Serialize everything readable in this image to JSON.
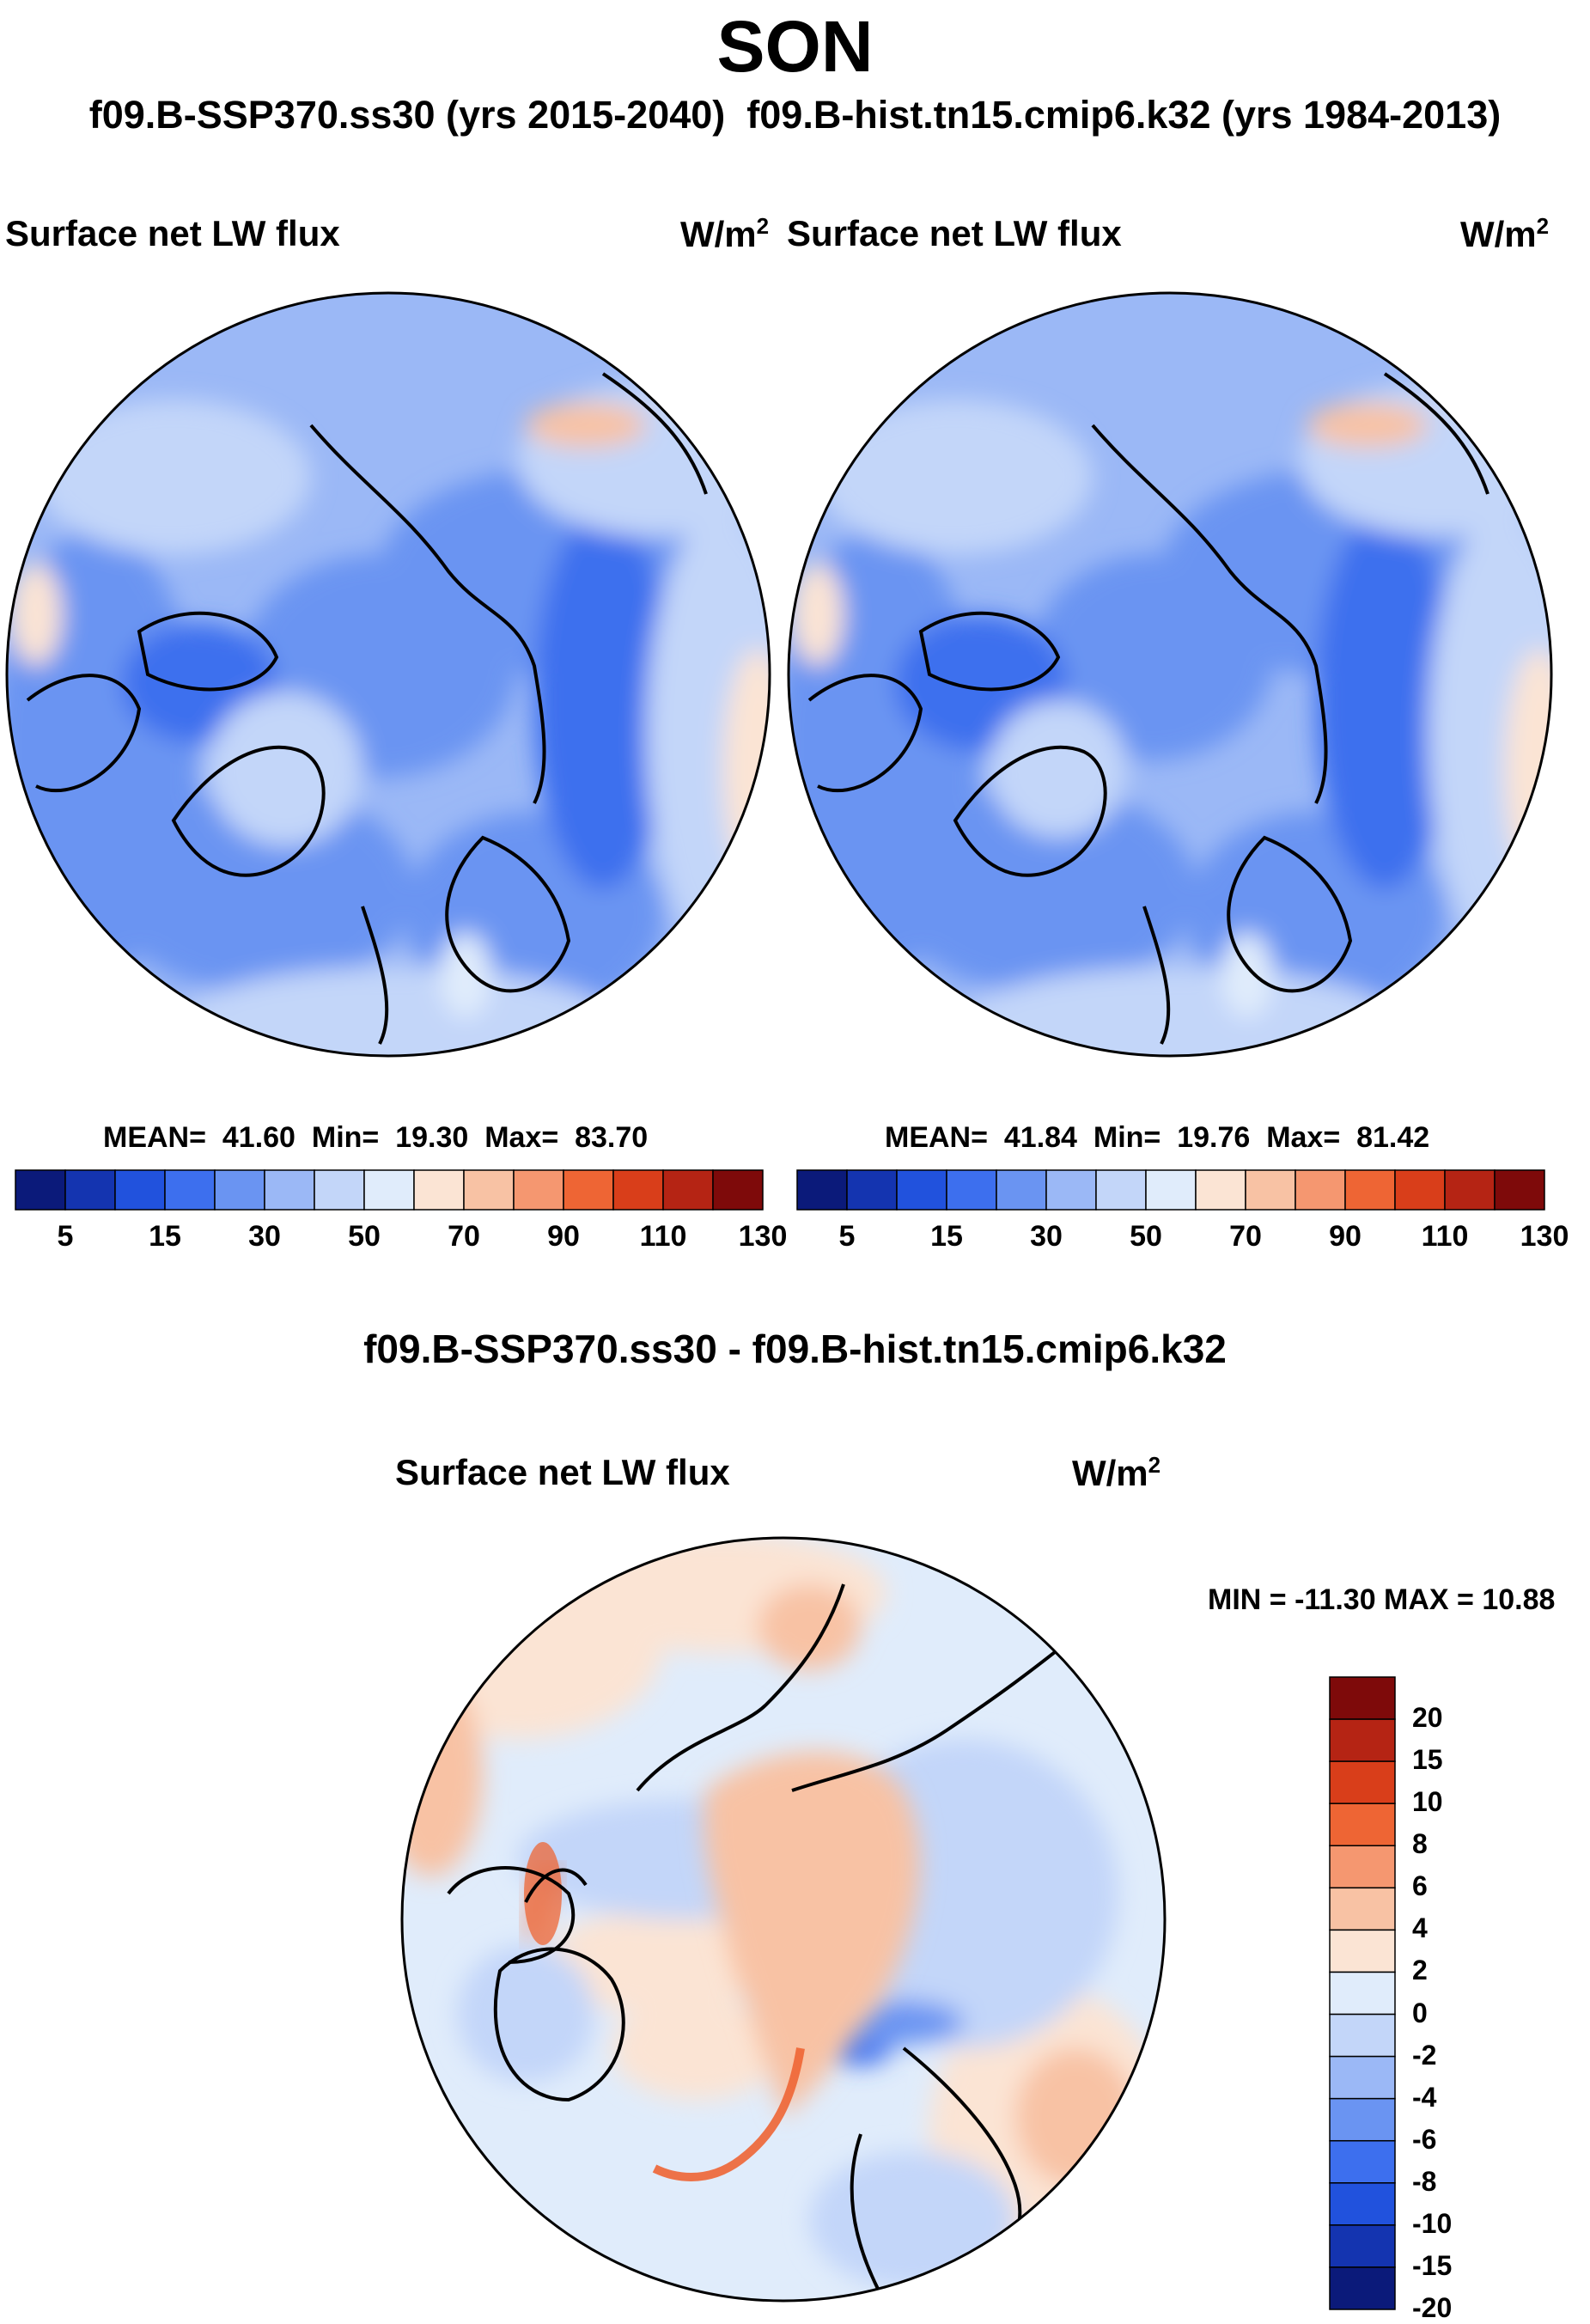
{
  "figure": {
    "season": "SON",
    "subtitle_left": "f09.B-SSP370.ss30 (yrs 2015-2040)",
    "subtitle_right": "f09.B-hist.tn15.cmip6.k32 (yrs 1984-2013)"
  },
  "panels": [
    {
      "variable": "Surface net LW flux",
      "units_base": "W/m",
      "units_exp": "2",
      "mean_label": "MEAN=",
      "mean": "41.60",
      "min_label": "Min=",
      "min": "19.30",
      "max_label": "Max=",
      "max": "83.70"
    },
    {
      "variable": "Surface net LW flux",
      "units_base": "W/m",
      "units_exp": "2",
      "mean_label": "MEAN=",
      "mean": "41.84",
      "min_label": "Min=",
      "min": "19.76",
      "max_label": "Max=",
      "max": "81.42"
    }
  ],
  "colorbar_abs": {
    "colors": [
      "#0b1a7a",
      "#1434b0",
      "#2152dd",
      "#3d6fee",
      "#6a94f2",
      "#9bb8f6",
      "#c3d6f9",
      "#e0ecfb",
      "#fbe4d4",
      "#f8c2a4",
      "#f59770",
      "#ee6534",
      "#d93e1a",
      "#b52414",
      "#7e0a0a"
    ],
    "tick_labels": [
      "5",
      "15",
      "30",
      "50",
      "70",
      "90",
      "110",
      "130"
    ]
  },
  "difference": {
    "title": "f09.B-SSP370.ss30 - f09.B-hist.tn15.cmip6.k32",
    "variable": "Surface net LW flux",
    "units_base": "W/m",
    "units_exp": "2",
    "minmax_text": "MIN = -11.30 MAX =  10.88",
    "colorbar": {
      "colors": [
        "#0b1a7a",
        "#1434b0",
        "#2152dd",
        "#3d6fee",
        "#6a94f2",
        "#9bb8f6",
        "#c3d6f9",
        "#e0ecfb",
        "#fbe4d4",
        "#f8c2a4",
        "#f59770",
        "#ee6534",
        "#d93e1a",
        "#b52414",
        "#7e0a0a"
      ],
      "tick_labels": [
        "20",
        "15",
        "10",
        "8",
        "6",
        "4",
        "2",
        "0",
        "-2",
        "-4",
        "-6",
        "-8",
        "-10",
        "-15",
        "-20"
      ]
    }
  }
}
